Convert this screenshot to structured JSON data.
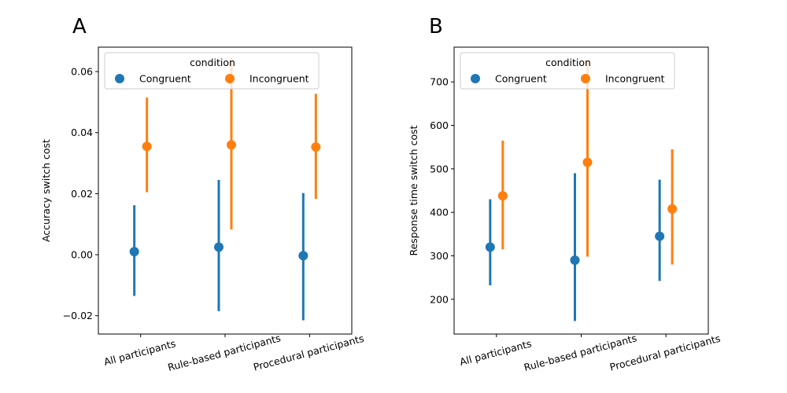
{
  "colors": {
    "congruent": "#1f77b4",
    "incongruent": "#ff7f0e"
  },
  "chart_data": [
    {
      "type": "scatter",
      "panel_label": "A",
      "title": "",
      "xlabel": "",
      "ylabel": "Accuracy switch cost",
      "categories": [
        "All participants",
        "Rule-based participants",
        "Procedural participants"
      ],
      "ylim": [
        -0.026,
        0.068
      ],
      "yticks": [
        -0.02,
        0.0,
        0.02,
        0.04,
        0.06
      ],
      "ytick_labels": [
        "−0.02",
        "0.00",
        "0.02",
        "0.04",
        "0.06"
      ],
      "legend": {
        "title": "condition",
        "placement": "top",
        "entries": [
          "Congruent",
          "Incongruent"
        ]
      },
      "series": [
        {
          "name": "Congruent",
          "values": [
            0.001,
            0.0025,
            -0.0003
          ],
          "ci_low": [
            -0.0135,
            -0.0185,
            -0.0215
          ],
          "ci_high": [
            0.0162,
            0.0245,
            0.0202
          ]
        },
        {
          "name": "Incongruent",
          "values": [
            0.0355,
            0.036,
            0.0353
          ],
          "ci_low": [
            0.0205,
            0.0083,
            0.0183
          ],
          "ci_high": [
            0.0515,
            0.0645,
            0.0527
          ]
        }
      ]
    },
    {
      "type": "scatter",
      "panel_label": "B",
      "title": "",
      "xlabel": "",
      "ylabel": "Response time switch cost",
      "categories": [
        "All participants",
        "Rule-based participants",
        "Procedural participants"
      ],
      "ylim": [
        120,
        780
      ],
      "yticks": [
        200,
        300,
        400,
        500,
        600,
        700
      ],
      "ytick_labels": [
        "200",
        "300",
        "400",
        "500",
        "600",
        "700"
      ],
      "legend": {
        "title": "condition",
        "placement": "top",
        "entries": [
          "Congruent",
          "Incongruent"
        ]
      },
      "series": [
        {
          "name": "Congruent",
          "values": [
            320,
            290,
            345
          ],
          "ci_low": [
            232,
            150,
            242
          ],
          "ci_high": [
            430,
            490,
            475
          ]
        },
        {
          "name": "Incongruent",
          "values": [
            438,
            515,
            408
          ],
          "ci_low": [
            315,
            298,
            280
          ],
          "ci_high": [
            565,
            750,
            545
          ]
        }
      ]
    }
  ]
}
